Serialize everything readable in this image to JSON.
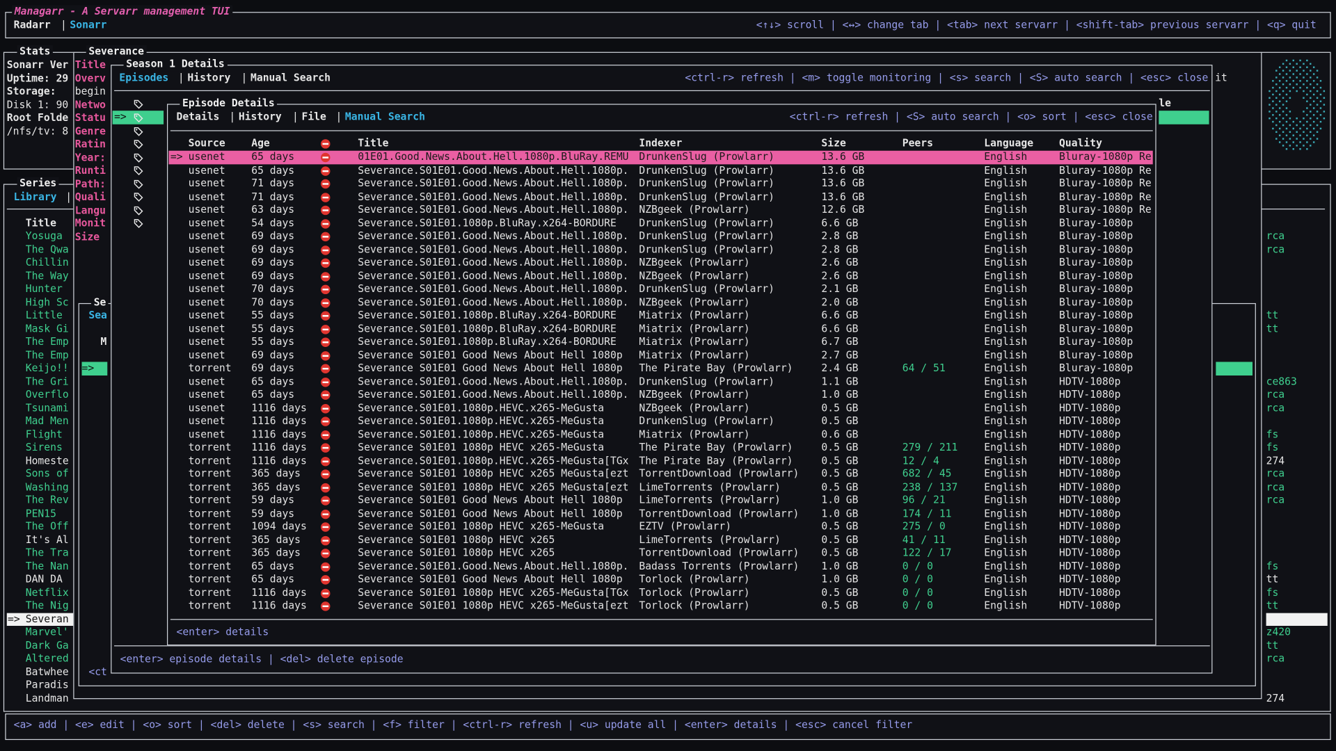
{
  "header": {
    "title": "Managarr - A Servarr management TUI",
    "tabs": [
      "Radarr",
      "Sonarr"
    ],
    "help": "<↑↓> scroll | <↔> change tab | <tab> next servarr | <shift-tab> previous servarr | <q> quit"
  },
  "selector": "=>",
  "separator": "|",
  "stats": {
    "title": "Stats",
    "lines": [
      "Sonarr Ver",
      "Uptime: 29",
      "Storage:",
      "Disk 1: 90",
      "Root Folde",
      "/nfs/tv: 8"
    ]
  },
  "series": {
    "title": "Series",
    "tab": "Library",
    "column": "Title",
    "rows": [
      {
        "title": "Yosuga",
        "suffix": "rca"
      },
      {
        "title": "The Qwa",
        "suffix": "rca"
      },
      {
        "title": "Chillin"
      },
      {
        "title": "The Way"
      },
      {
        "title": "Hunter"
      },
      {
        "title": "High Sc"
      },
      {
        "title": "Little",
        "suffix": "tt"
      },
      {
        "title": "Mask Gi",
        "suffix": "tt"
      },
      {
        "title": "The Emp"
      },
      {
        "title": "The Emp"
      },
      {
        "title": "Keijo!!"
      },
      {
        "title": "The Gri",
        "suffix": "ce863"
      },
      {
        "title": "Overflo",
        "suffix": "rca"
      },
      {
        "title": "Tsunami",
        "suffix": "rca"
      },
      {
        "title": "Mad Men"
      },
      {
        "title": "Flight",
        "suffix": "fs"
      },
      {
        "title": "Sirens",
        "suffix": "fs"
      },
      {
        "title": "Homeste",
        "suffix": "274",
        "color": "#e6e6e6"
      },
      {
        "title": "Sons of",
        "suffix": "rca"
      },
      {
        "title": "Washing",
        "suffix": "rca"
      },
      {
        "title": "The Rev",
        "suffix": "rca"
      },
      {
        "title": "PEN15"
      },
      {
        "title": "The Off"
      },
      {
        "title": "It's Al",
        "color": "#e6e6e6"
      },
      {
        "title": "The Tra"
      },
      {
        "title": "The Nan",
        "suffix": "fs"
      },
      {
        "title": "DAN DA",
        "suffix": "tt",
        "color": "#e6e6e6"
      },
      {
        "title": "Netflix",
        "suffix": "fs"
      },
      {
        "title": "The Nig",
        "suffix": "tt"
      },
      {
        "title": "Severan",
        "selected": true
      },
      {
        "title": "Marvel'",
        "suffix": "z420"
      },
      {
        "title": "Dark Ga",
        "suffix": "tt"
      },
      {
        "title": "Altered",
        "suffix": "rca"
      },
      {
        "title": "Batwhee",
        "color": "#e6e6e6"
      },
      {
        "title": "Paradis",
        "color": "#e6e6e6"
      },
      {
        "title": "Landman",
        "suffix": "274",
        "color": "#e6e6e6"
      }
    ]
  },
  "series_details": {
    "title": "Severance",
    "labels": [
      "Title",
      "Overv",
      "begin",
      "Netwo",
      "Statu",
      "Genre",
      "Ratin",
      "Year:",
      "Runti",
      "Path:",
      "Quali",
      "Langu",
      "Monit",
      "Size"
    ],
    "help_tail": "it",
    "header_tail": "le"
  },
  "inner": {
    "title": "Se",
    "tab": "Sea",
    "column": "M",
    "footer": "<ct"
  },
  "season": {
    "title": "Season 1 Details",
    "tabs": [
      "Episodes",
      "History",
      "Manual Search"
    ],
    "help": "<ctrl-r> refresh | <m> toggle monitoring | <s> search | <S> auto search | <esc> close",
    "footer": "<enter> episode details | <del> delete episode"
  },
  "episode": {
    "title": "Episode Details",
    "tabs": [
      "Details",
      "History",
      "File",
      "Manual Search"
    ],
    "help": "<ctrl-r> refresh | <S> auto search | <o> sort | <esc> close",
    "footer": "<enter> details"
  },
  "table": {
    "columns": [
      "Source",
      "Age",
      "Title",
      "Indexer",
      "Size",
      "Peers",
      "Language",
      "Quality"
    ],
    "rows": [
      [
        "usenet",
        "65 days",
        "01E01.Good.News.About.Hell.1080p.BluRay.REMU",
        "DrunkenSlug (Prowlarr)",
        "13.6 GB",
        null,
        "English",
        "Bluray-1080p Re"
      ],
      [
        "usenet",
        "65 days",
        "Severance.S01E01.Good.News.About.Hell.1080p.",
        "DrunkenSlug (Prowlarr)",
        "13.6 GB",
        null,
        "English",
        "Bluray-1080p Re"
      ],
      [
        "usenet",
        "71 days",
        "Severance.S01E01.Good.News.About.Hell.1080p.",
        "DrunkenSlug (Prowlarr)",
        "13.6 GB",
        null,
        "English",
        "Bluray-1080p Re"
      ],
      [
        "usenet",
        "71 days",
        "Severance.S01E01.Good.News.About.Hell.1080p.",
        "DrunkenSlug (Prowlarr)",
        "13.6 GB",
        null,
        "English",
        "Bluray-1080p Re"
      ],
      [
        "usenet",
        "63 days",
        "Severance.S01E01.Good.News.About.Hell.1080p.",
        "NZBgeek (Prowlarr)",
        "12.6 GB",
        null,
        "English",
        "Bluray-1080p Re"
      ],
      [
        "usenet",
        "54 days",
        "Severance.S01E01.1080p.BluRay.x264-BORDURE",
        "DrunkenSlug (Prowlarr)",
        "6.6 GB",
        null,
        "English",
        "Bluray-1080p"
      ],
      [
        "usenet",
        "69 days",
        "Severance.S01E01.Good.News.About.Hell.1080p.",
        "DrunkenSlug (Prowlarr)",
        "2.8 GB",
        null,
        "English",
        "Bluray-1080p"
      ],
      [
        "usenet",
        "69 days",
        "Severance.S01E01.Good.News.About.Hell.1080p.",
        "DrunkenSlug (Prowlarr)",
        "2.8 GB",
        null,
        "English",
        "Bluray-1080p"
      ],
      [
        "usenet",
        "69 days",
        "Severance.S01E01.Good.News.About.Hell.1080p.",
        "NZBgeek (Prowlarr)",
        "2.6 GB",
        null,
        "English",
        "Bluray-1080p"
      ],
      [
        "usenet",
        "69 days",
        "Severance.S01E01.Good.News.About.Hell.1080p.",
        "NZBgeek (Prowlarr)",
        "2.6 GB",
        null,
        "English",
        "Bluray-1080p"
      ],
      [
        "usenet",
        "70 days",
        "Severance.S01E01.Good.News.About.Hell.1080p.",
        "DrunkenSlug (Prowlarr)",
        "2.1 GB",
        null,
        "English",
        "Bluray-1080p"
      ],
      [
        "usenet",
        "70 days",
        "Severance.S01E01.Good.News.About.Hell.1080p.",
        "NZBgeek (Prowlarr)",
        "2.0 GB",
        null,
        "English",
        "Bluray-1080p"
      ],
      [
        "usenet",
        "55 days",
        "Severance.S01E01.1080p.BluRay.x264-BORDURE",
        "Miatrix (Prowlarr)",
        "6.6 GB",
        null,
        "English",
        "Bluray-1080p"
      ],
      [
        "usenet",
        "55 days",
        "Severance.S01E01.1080p.BluRay.x264-BORDURE",
        "Miatrix (Prowlarr)",
        "6.6 GB",
        null,
        "English",
        "Bluray-1080p"
      ],
      [
        "usenet",
        "55 days",
        "Severance.S01E01.1080p.BluRay.x264-BORDURE",
        "Miatrix (Prowlarr)",
        "6.7 GB",
        null,
        "English",
        "Bluray-1080p"
      ],
      [
        "usenet",
        "69 days",
        "Severance S01E01 Good News About Hell 1080p",
        "Miatrix (Prowlarr)",
        "2.7 GB",
        null,
        "English",
        "Bluray-1080p"
      ],
      [
        "torrent",
        "69 days",
        "Severance S01E01 Good News About Hell 1080p",
        "The Pirate Bay (Prowlarr)",
        "2.4 GB",
        "64 / 51",
        "English",
        "Bluray-1080p"
      ],
      [
        "usenet",
        "65 days",
        "Severance.S01E01.Good.News.About.Hell.1080p.",
        "DrunkenSlug (Prowlarr)",
        "1.1 GB",
        null,
        "English",
        "HDTV-1080p"
      ],
      [
        "usenet",
        "65 days",
        "Severance.S01E01.Good.News.About.Hell.1080p.",
        "NZBgeek (Prowlarr)",
        "1.0 GB",
        null,
        "English",
        "HDTV-1080p"
      ],
      [
        "usenet",
        "1116 days",
        "Severance.S01E01.1080p.HEVC.x265-MeGusta",
        "NZBgeek (Prowlarr)",
        "0.5 GB",
        null,
        "English",
        "HDTV-1080p"
      ],
      [
        "usenet",
        "1116 days",
        "Severance.S01E01.1080p.HEVC.x265-MeGusta",
        "DrunkenSlug (Prowlarr)",
        "0.5 GB",
        null,
        "English",
        "HDTV-1080p"
      ],
      [
        "usenet",
        "1116 days",
        "Severance.S01E01.1080p.HEVC.x265-MeGusta",
        "Miatrix (Prowlarr)",
        "0.6 GB",
        null,
        "English",
        "HDTV-1080p"
      ],
      [
        "torrent",
        "1116 days",
        "Severance S01E01 1080p HEVC x265-MeGusta",
        "The Pirate Bay (Prowlarr)",
        "0.5 GB",
        "279 / 211",
        "English",
        "HDTV-1080p"
      ],
      [
        "torrent",
        "1116 days",
        "Severance.S01E01.1080p.HEVC.x265-MeGusta[TGx",
        "The Pirate Bay (Prowlarr)",
        "0.5 GB",
        "12 / 4",
        "English",
        "HDTV-1080p"
      ],
      [
        "torrent",
        "365 days",
        "Severance S01E01 1080p HEVC x265 MeGusta[ezt",
        "TorrentDownload (Prowlarr)",
        "0.5 GB",
        "682 / 45",
        "English",
        "HDTV-1080p"
      ],
      [
        "torrent",
        "365 days",
        "Severance S01E01 1080p HEVC x265 MeGusta[ezt",
        "LimeTorrents (Prowlarr)",
        "0.5 GB",
        "238 / 137",
        "English",
        "HDTV-1080p"
      ],
      [
        "torrent",
        "59 days",
        "Severance S01E01 Good News About Hell 1080p",
        "LimeTorrents (Prowlarr)",
        "1.0 GB",
        "96 / 21",
        "English",
        "HDTV-1080p"
      ],
      [
        "torrent",
        "59 days",
        "Severance S01E01 Good News About Hell 1080p",
        "TorrentDownload (Prowlarr)",
        "1.0 GB",
        "174 / 11",
        "English",
        "HDTV-1080p"
      ],
      [
        "torrent",
        "1094 days",
        "Severance S01E01 1080p HEVC x265-MeGusta",
        "EZTV (Prowlarr)",
        "0.5 GB",
        "275 / 0",
        "English",
        "HDTV-1080p"
      ],
      [
        "torrent",
        "365 days",
        "Severance S01E01 1080p HEVC x265",
        "LimeTorrents (Prowlarr)",
        "0.5 GB",
        "41 / 11",
        "English",
        "HDTV-1080p"
      ],
      [
        "torrent",
        "365 days",
        "Severance S01E01 1080p HEVC x265",
        "TorrentDownload (Prowlarr)",
        "0.5 GB",
        "122 / 17",
        "English",
        "HDTV-1080p"
      ],
      [
        "torrent",
        "65 days",
        "Severance.S01E01.Good.News.About.Hell.1080p.",
        "Badass Torrents (Prowlarr)",
        "1.0 GB",
        "0 / 0",
        "English",
        "HDTV-1080p"
      ],
      [
        "torrent",
        "65 days",
        "Severance S01E01 Good News About Hell 1080p",
        "Torlock (Prowlarr)",
        "1.0 GB",
        "0 / 0",
        "English",
        "HDTV-1080p"
      ],
      [
        "torrent",
        "1116 days",
        "Severance S01E01 1080p HEVC x265-MeGusta[TGx",
        "Torlock (Prowlarr)",
        "0.5 GB",
        "0 / 0",
        "English",
        "HDTV-1080p"
      ],
      [
        "torrent",
        "1116 days",
        "Severance S01E01 1080p HEVC x265-MeGusta[ezt",
        "Torlock (Prowlarr)",
        "0.5 GB",
        "0 / 0",
        "English",
        "HDTV-1080p"
      ]
    ],
    "selected_row": 0
  },
  "footer": {
    "help": "<a> add | <e> edit | <o> sort | <del> delete | <s> search | <f> filter | <ctrl-r> refresh | <u> update all | <enter> details | <esc> cancel filter"
  }
}
